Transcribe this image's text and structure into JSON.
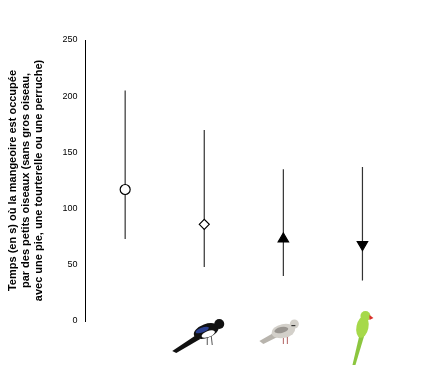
{
  "chart_data": {
    "type": "scatter",
    "y_label": [
      "Temps (en s) où la mangeoire est occupée",
      "par des petits oiseaux (sans gros oiseau,",
      "avec une pie, une tourterelle ou une perruche)"
    ],
    "categories": [
      null,
      null,
      null,
      null
    ],
    "series": [
      {
        "color": "#000000",
        "marker": "circle-open",
        "values": [
          117,
          null,
          null,
          null
        ],
        "lower": [
          73,
          null,
          null,
          null
        ],
        "upper": [
          205,
          null,
          null,
          null
        ]
      },
      {
        "color": "#000000",
        "marker": "diamond-open",
        "values": [
          null,
          86,
          null,
          null
        ],
        "lower": [
          null,
          48,
          null,
          null
        ],
        "upper": [
          null,
          170,
          null,
          null
        ]
      },
      {
        "color": "#000000",
        "marker": "triangle-up",
        "values": [
          null,
          null,
          73,
          null
        ],
        "lower": [
          null,
          null,
          40,
          null
        ],
        "upper": [
          null,
          null,
          135,
          null
        ]
      },
      {
        "color": "#000000",
        "marker": "triangle-down",
        "values": [
          null,
          null,
          null,
          68
        ],
        "lower": [
          null,
          null,
          null,
          36
        ],
        "upper": [
          null,
          null,
          null,
          137
        ]
      }
    ],
    "ylim": [
      0,
      250
    ],
    "yticks": [
      0,
      50,
      100,
      150,
      200,
      250
    ],
    "grid": false,
    "tick_labels": "y"
  }
}
